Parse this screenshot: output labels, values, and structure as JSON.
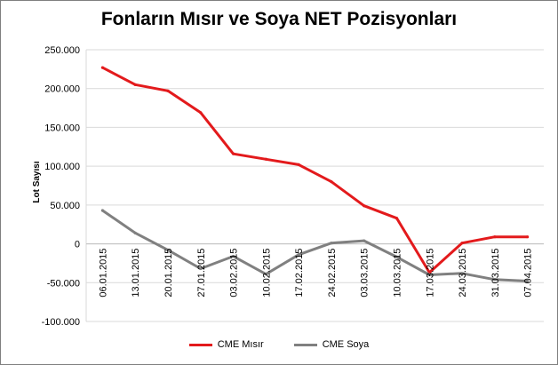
{
  "chart_data": {
    "type": "line",
    "title": "Fonların Mısır ve Soya NET Pozisyonları",
    "ylabel": "Lot Sayısı",
    "xlabel": "",
    "ylim": [
      -100000,
      250000
    ],
    "ytick_values": [
      250000,
      200000,
      150000,
      100000,
      50000,
      0,
      -50000,
      -100000
    ],
    "ytick_labels": [
      "250.000",
      "200.000",
      "150.000",
      "100.000",
      "50.000",
      "0",
      "-50.000",
      "-100.000"
    ],
    "grid": true,
    "legend_position": "bottom",
    "categories": [
      "06.01.2015",
      "13.01.2015",
      "20.01.2015",
      "27.01.2015",
      "03.02.2015",
      "10.02.2015",
      "17.02.2015",
      "24.02.2015",
      "03.03.2015",
      "10.03.2015",
      "17.03.2015",
      "24.03.2015",
      "31.03.2015",
      "07.04.2015"
    ],
    "series": [
      {
        "name": "CME Mısır",
        "color": "#e31a1c",
        "values": [
          227000,
          205000,
          197000,
          169000,
          116000,
          109000,
          102000,
          80000,
          49000,
          33000,
          -37000,
          1000,
          9000,
          9000
        ]
      },
      {
        "name": "CME Soya",
        "color": "#808080",
        "values": [
          43000,
          14000,
          -8000,
          -32000,
          -16000,
          -39000,
          -14000,
          1000,
          4000,
          -17000,
          -40000,
          -38000,
          -46000,
          -48000
        ]
      }
    ]
  }
}
